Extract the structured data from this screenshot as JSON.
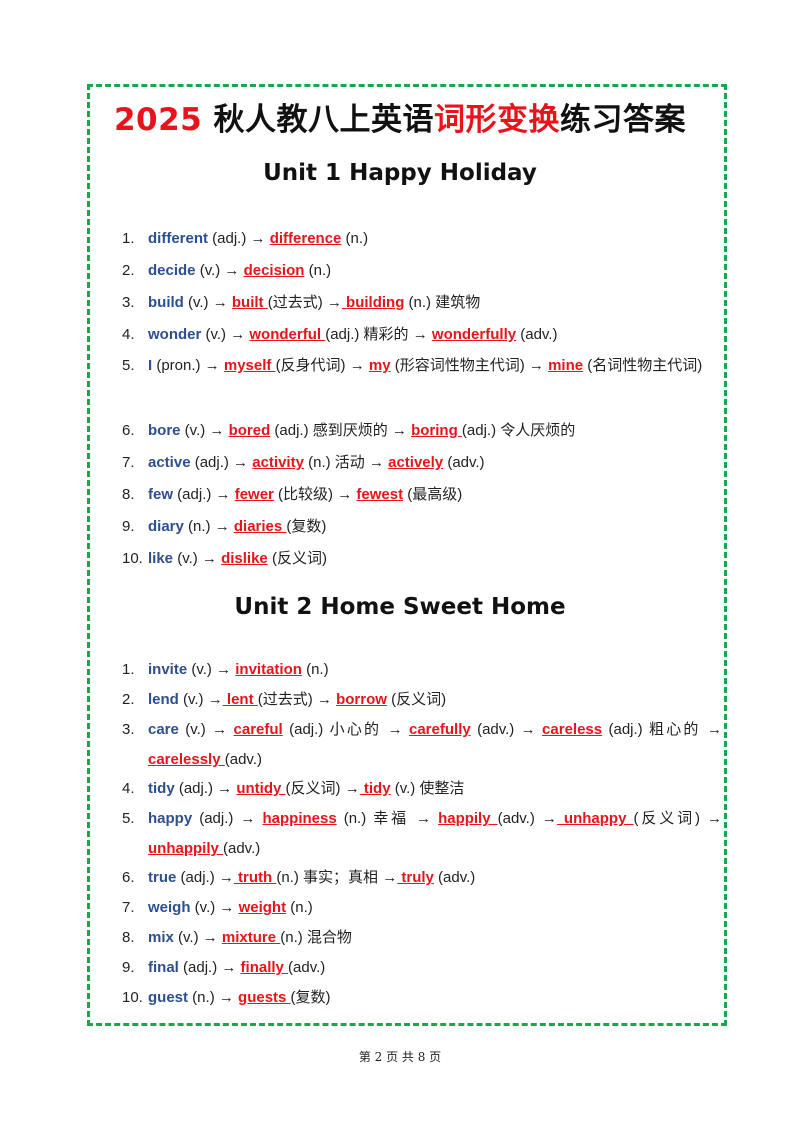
{
  "document": {
    "title_part1": "2025",
    "title_part2": " 秋人教八上英语",
    "title_part3": "词形变换",
    "title_part4": "练习答案",
    "footer": "第 2 页 共 8 页"
  },
  "unit1": {
    "heading": "Unit 1 Happy Holiday",
    "items": [
      {
        "n": "1.",
        "w": "different",
        "p1": " (adj.) → ",
        "a1": " difference",
        "p2": " (n.)"
      },
      {
        "n": "2.",
        "w": "decide",
        "p1": " (v.) → ",
        "a1": "decision",
        "p2": " (n.)"
      },
      {
        "n": "3.",
        "w": "build",
        "p1": " (v.) → ",
        "a1": "built ",
        "p2": "(过去式) →",
        "a2": " building",
        "p3": " (n.)  建筑物"
      },
      {
        "n": "4.",
        "w": "wonder",
        "p1": " (v.) → ",
        "a1": "wonderful ",
        "p2": "(adj.)  精彩的  → ",
        "a2": "wonderfully",
        "p3": " (adv.)"
      },
      {
        "n": "5.",
        "w": "I",
        "p1": " (pron.) → ",
        "a1": "myself ",
        "p2": "(反身代词) → ",
        "a2": "my",
        "p3": " (形容词性物主代词) → ",
        "a3": "mine",
        "p4": " (名词性物主代词)"
      },
      {
        "n": "6.",
        "w": "bore",
        "p1": " (v.) → ",
        "a1": "bored",
        "p2": " (adj.)  感到厌烦的  → ",
        "a2": "boring ",
        "p3": "(adj.)  令人厌烦的"
      },
      {
        "n": "7.",
        "w": "active",
        "p1": " (adj.) → ",
        "a1": "activity",
        "p2": " (n.)  活动  → ",
        "a2": "actively",
        "p3": " (adv.)"
      },
      {
        "n": "8.",
        "w": "few",
        "p1": " (adj.) → ",
        "a1": "fewer",
        "p2": " (比较级) → ",
        "a2": "fewest",
        "p3": " (最高级)"
      },
      {
        "n": "9.",
        "w": "diary",
        "p1": " (n.) → ",
        "a1": "diaries ",
        "p2": "(复数)"
      },
      {
        "n": "10.",
        "w": "like",
        "p1": " (v.) → ",
        "a1": "dislike",
        "p2": " (反义词)"
      }
    ]
  },
  "unit2": {
    "heading": "Unit 2 Home Sweet Home",
    "items": [
      {
        "n": "1.",
        "w": "invite",
        "p1": " (v.) → ",
        "a1": "invitation",
        "p2": " (n.)"
      },
      {
        "n": "2.",
        "w": "lend",
        "p1": " (v.) →",
        "a1": " lent ",
        "p2": "(过去式) → ",
        "a2": "borrow",
        "p3": " (反义词)"
      },
      {
        "n": "3.",
        "w": "care",
        "p1": " (v.) → ",
        "a1": "careful",
        "p2": " (adj.)  小心的  → ",
        "a2": "carefully",
        "p3": " (adv.) → ",
        "a3": "careless",
        "p4": " (adj.)  粗心的 → ",
        "a4": "carelessly ",
        "p5": "(adv.)"
      },
      {
        "n": "4.",
        "w": "tidy",
        "p1": " (adj.) → ",
        "a1": "untidy ",
        "p2": "(反义词) →",
        "a2": " tidy",
        "p3": " (v.)  使整洁"
      },
      {
        "n": "5.",
        "w": "happy",
        "p1": " (adj.) → ",
        "a1": "happiness",
        "p2": " (n.)  幸福  → ",
        "a2": "happily ",
        "p3": "(adv.) →",
        "a3": " unhappy ",
        "p4": "(反义词) → ",
        "a4": "unhappily ",
        "p5": "(adv.)"
      },
      {
        "n": "6.",
        "w": "true",
        "p1": " (adj.) →",
        "a1": " truth ",
        "p2": "(n.)  事实；真相  →",
        "a2": " truly",
        "p3": " (adv.)"
      },
      {
        "n": "7.",
        "w": "weigh",
        "p1": " (v.) → ",
        "a1": "weight",
        "p2": " (n.)"
      },
      {
        "n": "8.",
        "w": "mix",
        "p1": " (v.) → ",
        "a1": "mixture ",
        "p2": "(n.)  混合物"
      },
      {
        "n": "9.",
        "w": "final",
        "p1": " (adj.) → ",
        "a1": "finally ",
        "p2": "(adv.)"
      },
      {
        "n": "10.",
        "w": "guest",
        "p1": " (n.) → ",
        "a1": "guests ",
        "p2": "(复数)"
      }
    ]
  }
}
